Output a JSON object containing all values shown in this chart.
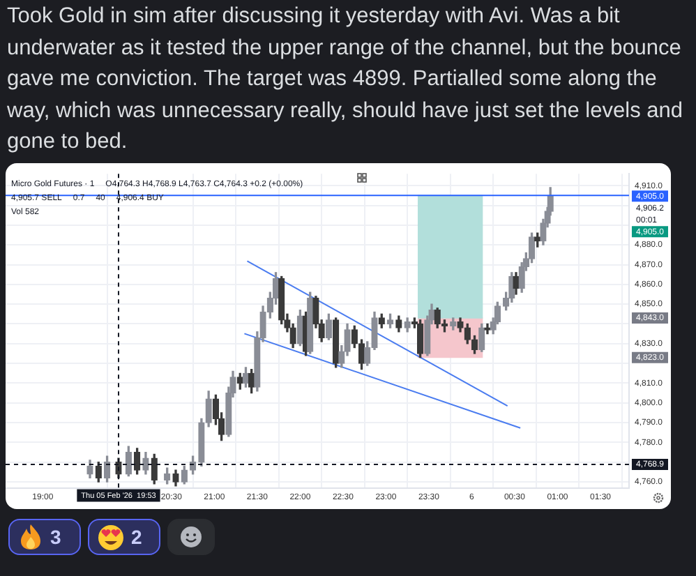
{
  "chart_data": {
    "type": "candlestick",
    "title": "Took Gold in sim after discussing it yesterday with Avi. Was a bit underwater as it tested the upper range of the channel, but the bounce gave me conviction. The target was 4899. Partialled some along the way, which was unnecessary really, should have just set the levels and gone to bed.",
    "xlim": [
      "2026-02-05T18:34",
      "2026-02-06T01:50"
    ],
    "ylim": [
      4757,
      4916
    ],
    "xticks": [
      {
        "value": "2026-02-05T19:00",
        "label": "19:00"
      },
      {
        "value": "2026-02-05T20:30",
        "label": "20:30"
      },
      {
        "value": "2026-02-05T21:00",
        "label": "21:00"
      },
      {
        "value": "2026-02-05T21:30",
        "label": "21:30"
      },
      {
        "value": "2026-02-05T22:00",
        "label": "22:00"
      },
      {
        "value": "2026-02-05T22:30",
        "label": "22:30"
      },
      {
        "value": "2026-02-05T23:00",
        "label": "23:00"
      },
      {
        "value": "2026-02-05T23:30",
        "label": "23:30"
      },
      {
        "value": "2026-02-06T00:00",
        "label": "6"
      },
      {
        "value": "2026-02-06T00:30",
        "label": "00:30"
      },
      {
        "value": "2026-02-06T01:00",
        "label": "01:00"
      },
      {
        "value": "2026-02-06T01:30",
        "label": "01:30"
      }
    ],
    "yticks": [
      {
        "value": 4760,
        "label": "4,760.0"
      },
      {
        "value": 4770,
        "label": null
      },
      {
        "value": 4780,
        "label": "4,780.0"
      },
      {
        "value": 4790,
        "label": "4,790.0"
      },
      {
        "value": 4800,
        "label": "4,800.0"
      },
      {
        "value": 4810,
        "label": "4,810.0"
      },
      {
        "value": 4820,
        "label": null
      },
      {
        "value": 4830,
        "label": "4,830.0"
      },
      {
        "value": 4840,
        "label": null
      },
      {
        "value": 4850,
        "label": "4,850.0"
      },
      {
        "value": 4860,
        "label": "4,860.0"
      },
      {
        "value": 4870,
        "label": "4,870.0"
      },
      {
        "value": 4880,
        "label": "4,880.0"
      },
      {
        "value": 4890,
        "label": null
      },
      {
        "value": 4900,
        "label": null
      },
      {
        "value": 4910,
        "label": "4,910.0"
      }
    ],
    "grid": true,
    "legend": false,
    "marker": "none",
    "series": [
      {
        "type": "bar",
        "color": "#b2dfdb",
        "x": [
          "2026-02-05T23:45"
        ],
        "base": [
          4843
        ],
        "values": [
          62
        ]
      },
      {
        "type": "bar",
        "color": "#f5c6cc",
        "x": [
          "2026-02-05T23:45"
        ],
        "base": [
          4823
        ],
        "values": [
          20
        ]
      },
      {
        "type": "line",
        "color": "#4a7cf0",
        "x": [
          "2026-02-05T21:23",
          "2026-02-06T00:25"
        ],
        "values": [
          4871.8,
          4798.5
        ]
      },
      {
        "type": "line",
        "color": "#4a7cf0",
        "x": [
          "2026-02-05T21:21",
          "2026-02-06T00:34"
        ],
        "values": [
          4835.1,
          4787.3
        ]
      },
      {
        "colors": [
          "#8a8d96",
          "#3a3a3a",
          "#8a8d96",
          "#3a3a3a",
          "#8a8d96",
          "#3a3a3a",
          "#8a8d96",
          "#3a3a3a",
          "#8a8d96",
          "#3a3a3a",
          "#8a8d96",
          "#8a8d96",
          "#8a8d96",
          "#8a8d96",
          "#3a3a3a",
          "#3a3a3a",
          "#8a8d96",
          "#8a8d96",
          "#3a3a3a",
          "#8a8d96",
          "#3a3a3a",
          "#8a8d96",
          "#8a8d96",
          "#8a8d96",
          "#8a8d96",
          "#3a3a3a",
          "#3a3a3a",
          "#3a3a3a",
          "#8a8d96",
          "#3a3a3a",
          "#8a8d96",
          "#3a3a3a",
          "#3a3a3a",
          "#8a8d96",
          "#3a3a3a",
          "#8a8d96",
          "#8a8d96",
          "#3a3a3a",
          "#3a3a3a",
          "#8a8d96",
          "#8a8d96",
          "#3a3a3a",
          "#8a8d96",
          "#3a3a3a",
          "#8a8d96",
          "#3a3a3a",
          "#3a3a3a",
          "#8a8d96",
          "#8a8d96",
          "#3a3a3a",
          "#3a3a3a",
          "#8a8d96",
          "#3a3a3a",
          "#3a3a3a",
          "#3a3a3a",
          "#8a8d96",
          "#3a3a3a",
          "#8a8d96",
          "#8a8d96",
          "#8a8d96",
          "#8a8d96",
          "#3a3a3a",
          "#8a8d96",
          "#8a8d96",
          "#8a8d96",
          "#3a3a3a",
          "#8a8d96",
          "#8a8d96",
          "#8a8d96"
        ],
        "x": [
          "2026-02-05T19:33",
          "2026-02-05T19:39",
          "2026-02-05T19:45",
          "2026-02-05T19:53",
          "2026-02-05T20:00",
          "2026-02-05T20:06",
          "2026-02-05T20:12",
          "2026-02-05T20:18",
          "2026-02-05T20:27",
          "2026-02-05T20:33",
          "2026-02-05T20:39",
          "2026-02-05T20:45",
          "2026-02-05T20:51",
          "2026-02-05T20:56",
          "2026-02-05T21:01",
          "2026-02-05T21:05",
          "2026-02-05T21:10",
          "2026-02-05T21:13",
          "2026-02-05T21:18",
          "2026-02-05T21:22",
          "2026-02-05T21:26",
          "2026-02-05T21:30",
          "2026-02-05T21:34",
          "2026-02-05T21:39",
          "2026-02-05T21:43",
          "2026-02-05T21:47",
          "2026-02-05T21:51",
          "2026-02-05T21:55",
          "2026-02-05T22:00",
          "2026-02-05T22:04",
          "2026-02-05T22:07",
          "2026-02-05T22:11",
          "2026-02-05T22:15",
          "2026-02-05T22:20",
          "2026-02-05T22:25",
          "2026-02-05T22:29",
          "2026-02-05T22:33",
          "2026-02-05T22:38",
          "2026-02-05T22:43",
          "2026-02-05T22:47",
          "2026-02-05T22:52",
          "2026-02-05T22:57",
          "2026-02-05T23:03",
          "2026-02-05T23:09",
          "2026-02-05T23:15",
          "2026-02-05T23:20",
          "2026-02-05T23:24",
          "2026-02-05T23:29",
          "2026-02-05T23:32",
          "2026-02-05T23:36",
          "2026-02-05T23:41",
          "2026-02-05T23:47",
          "2026-02-05T23:52",
          "2026-02-05T23:57",
          "2026-02-06T00:02",
          "2026-02-06T00:07",
          "2026-02-06T00:11",
          "2026-02-06T00:15",
          "2026-02-06T00:18",
          "2026-02-06T00:24",
          "2026-02-06T00:28",
          "2026-02-06T00:31",
          "2026-02-06T00:35",
          "2026-02-06T00:38",
          "2026-02-06T00:42",
          "2026-02-06T00:46",
          "2026-02-06T00:50",
          "2026-02-06T00:53",
          "2026-02-06T00:55"
        ],
        "ohlc": [
          [
            4764,
            4771,
            4762,
            4768
          ],
          [
            4768,
            4770,
            4760,
            4762
          ],
          [
            4762,
            4773,
            4760,
            4770
          ],
          [
            4770,
            4772,
            4762,
            4764
          ],
          [
            4764,
            4778,
            4763,
            4775
          ],
          [
            4775,
            4777,
            4764,
            4766
          ],
          [
            4766,
            4775,
            4764,
            4772
          ],
          [
            4772,
            4774,
            4759,
            4761
          ],
          [
            4761,
            4767,
            4759,
            4764
          ],
          [
            4764,
            4766,
            4758,
            4760
          ],
          [
            4760,
            4768,
            4759,
            4766
          ],
          [
            4766,
            4773,
            4764,
            4770
          ],
          [
            4770,
            4792,
            4768,
            4790
          ],
          [
            4790,
            4806,
            4788,
            4802
          ],
          [
            4802,
            4804,
            4789,
            4792
          ],
          [
            4792,
            4795,
            4781,
            4784
          ],
          [
            4784,
            4808,
            4783,
            4805
          ],
          [
            4805,
            4816,
            4803,
            4813
          ],
          [
            4813,
            4815,
            4807,
            4810
          ],
          [
            4810,
            4818,
            4808,
            4815
          ],
          [
            4815,
            4817,
            4805,
            4808
          ],
          [
            4808,
            4836,
            4806,
            4833
          ],
          [
            4833,
            4849,
            4831,
            4846
          ],
          [
            4846,
            4856,
            4843,
            4853
          ],
          [
            4853,
            4866,
            4850,
            4863
          ],
          [
            4863,
            4864,
            4840,
            4842
          ],
          [
            4842,
            4845,
            4836,
            4838
          ],
          [
            4838,
            4840,
            4828,
            4830
          ],
          [
            4830,
            4847,
            4829,
            4844
          ],
          [
            4844,
            4846,
            4824,
            4826
          ],
          [
            4826,
            4856,
            4825,
            4853
          ],
          [
            4853,
            4854,
            4838,
            4840
          ],
          [
            4840,
            4842,
            4831,
            4833
          ],
          [
            4833,
            4845,
            4832,
            4842
          ],
          [
            4842,
            4843,
            4818,
            4820
          ],
          [
            4820,
            4829,
            4818,
            4826
          ],
          [
            4826,
            4840,
            4824,
            4837
          ],
          [
            4837,
            4839,
            4828,
            4830
          ],
          [
            4830,
            4832,
            4817,
            4820
          ],
          [
            4820,
            4831,
            4819,
            4828
          ],
          [
            4828,
            4846,
            4827,
            4843
          ],
          [
            4843,
            4845,
            4838,
            4840
          ],
          [
            4840,
            4845,
            4838,
            4842
          ],
          [
            4842,
            4844,
            4836,
            4838
          ],
          [
            4838,
            4843,
            4836,
            4841
          ],
          [
            4841,
            4843,
            4838,
            4840
          ],
          [
            4840,
            4842,
            4823,
            4825
          ],
          [
            4825,
            4844,
            4824,
            4842
          ],
          [
            4842,
            4850,
            4840,
            4847
          ],
          [
            4847,
            4848,
            4838,
            4840
          ],
          [
            4840,
            4842,
            4836,
            4839
          ],
          [
            4839,
            4843,
            4837,
            4841
          ],
          [
            4841,
            4843,
            4836,
            4838
          ],
          [
            4838,
            4840,
            4830,
            4832
          ],
          [
            4832,
            4834,
            4825,
            4827
          ],
          [
            4827,
            4840,
            4826,
            4838
          ],
          [
            4838,
            4840,
            4835,
            4837
          ],
          [
            4837,
            4843,
            4835,
            4841
          ],
          [
            4841,
            4851,
            4840,
            4849
          ],
          [
            4849,
            4856,
            4847,
            4853
          ],
          [
            4853,
            4866,
            4851,
            4864
          ],
          [
            4864,
            4866,
            4855,
            4858
          ],
          [
            4858,
            4871,
            4856,
            4869
          ],
          [
            4869,
            4876,
            4867,
            4873
          ],
          [
            4873,
            4886,
            4871,
            4884
          ],
          [
            4884,
            4886,
            4879,
            4882
          ],
          [
            4882,
            4893,
            4880,
            4891
          ],
          [
            4891,
            4899,
            4889,
            4897
          ],
          [
            4897,
            4909,
            4895,
            4905
          ]
        ]
      }
    ],
    "ref_lines": [
      {
        "axis": "y",
        "value": 4905,
        "label": "4,905.0",
        "color": "#2962ff"
      },
      {
        "axis": "y",
        "value": 4768.9,
        "label": "4,768.9",
        "color": "#131722",
        "line_style": "dashed"
      },
      {
        "axis": "x",
        "value": "2026-02-05T19:53",
        "label": "Thu 05 Feb '26  19:53",
        "color": "#131722",
        "line_style": "dashed"
      }
    ],
    "annotations": [
      "Micro Gold Futures · 1",
      "O4,764.3 H4,768.9 L4,763.7 C4,764.3 +0.2 (+0.00%)",
      "4,905.7 SELL",
      "0.7",
      "40",
      "4,906.4 BUY",
      "Vol 582",
      "4,906.2",
      "00:01",
      "4,905.0",
      {
        "text": "4,843.0",
        "y": 4843
      },
      {
        "text": "4,823.0",
        "y": 4823
      },
      "3",
      "2"
    ]
  }
}
